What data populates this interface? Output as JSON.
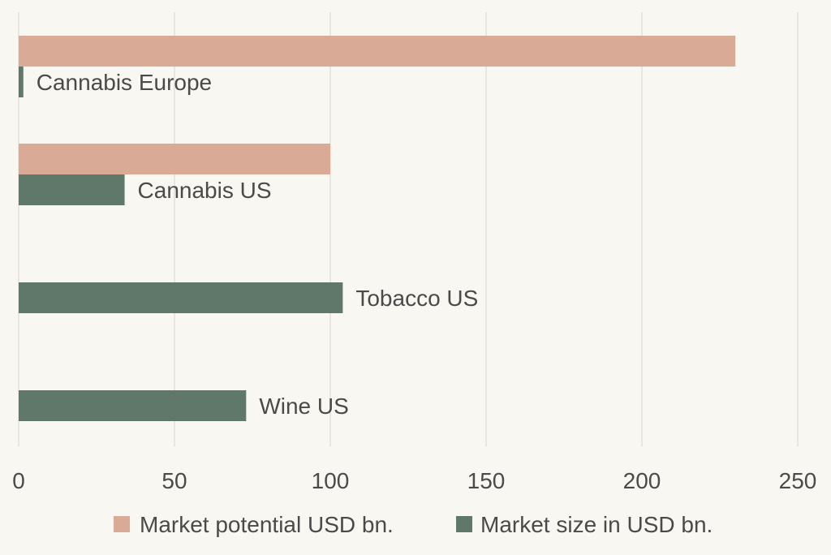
{
  "chart_data": {
    "type": "bar",
    "orientation": "horizontal",
    "categories": [
      "Cannabis Europe",
      "Cannabis US",
      "Tobacco US",
      "Wine US"
    ],
    "series": [
      {
        "name": "Market potential USD bn.",
        "color": "#d9ab96",
        "values": [
          230,
          100,
          null,
          null
        ]
      },
      {
        "name": "Market size in USD bn.",
        "color": "#60786a",
        "values": [
          1.5,
          34,
          104,
          73
        ]
      }
    ],
    "xlim": [
      0,
      250
    ],
    "xticks": [
      0,
      50,
      100,
      150,
      200,
      250
    ],
    "grid": true,
    "legend_position": "bottom"
  }
}
